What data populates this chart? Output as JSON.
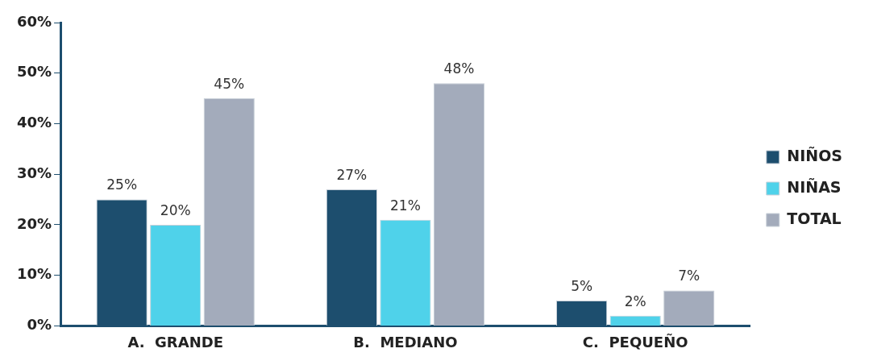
{
  "chart_data": {
    "type": "bar",
    "categories": [
      "A.  GRANDE",
      "B.  MEDIANO",
      "C.  PEQUEÑO"
    ],
    "series": [
      {
        "name": "NIÑOS",
        "color": "#1d4e6e",
        "values": [
          25,
          27,
          5
        ],
        "value_labels": [
          "25%",
          "27%",
          "5%"
        ]
      },
      {
        "name": "NIÑAS",
        "color": "#4fd2ea",
        "values": [
          20,
          21,
          2
        ],
        "value_labels": [
          "20%",
          "21%",
          "2%"
        ]
      },
      {
        "name": "TOTAL",
        "color": "#a3abbb",
        "values": [
          45,
          48,
          7
        ],
        "value_labels": [
          "45%",
          "48%",
          "7%"
        ]
      }
    ],
    "ylim": [
      0,
      60
    ],
    "yticks": [
      {
        "value": 0,
        "label": "0%"
      },
      {
        "value": 10,
        "label": "10%"
      },
      {
        "value": 20,
        "label": "20%"
      },
      {
        "value": 30,
        "label": "30%"
      },
      {
        "value": 40,
        "label": "40%"
      },
      {
        "value": 50,
        "label": "50%"
      },
      {
        "value": 60,
        "label": "60%"
      }
    ],
    "grid": false,
    "legend": "right"
  }
}
